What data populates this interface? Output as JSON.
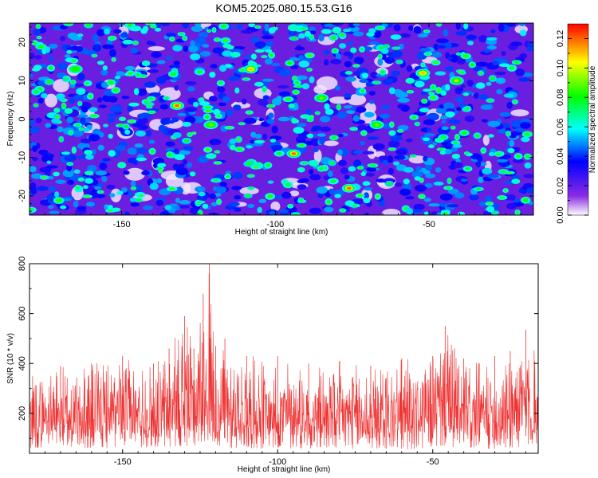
{
  "title": "KOM5.2025.080.15.53.G16",
  "chart_data": [
    {
      "type": "heatmap",
      "xlabel": "Height of straight line (km)",
      "ylabel": "Frequency (Hz)",
      "xlim": [
        -180,
        -16
      ],
      "ylim": [
        -25,
        25
      ],
      "x_ticks": [
        -150,
        -100,
        -50
      ],
      "x_tick_labels": [
        "-150",
        "-100",
        "-50"
      ],
      "y_ticks": [
        20,
        10,
        0,
        -10,
        -20
      ],
      "y_tick_labels": [
        "20",
        "10",
        "0",
        "-10",
        "-20"
      ],
      "colorbar": {
        "label": "Normalized spectral amplitude",
        "range": [
          0.0,
          0.13
        ],
        "ticks": [
          0.0,
          0.02,
          0.04,
          0.06,
          0.08,
          0.1,
          0.12
        ],
        "tick_labels": [
          "0.00",
          "0.02",
          "0.04",
          "0.06",
          "0.08",
          "0.10",
          "0.12"
        ],
        "colors": [
          "#ffffff",
          "#8a2be2",
          "#0000ff",
          "#00ffff",
          "#00ff00",
          "#ffff00",
          "#ff0000"
        ]
      },
      "peaks": [
        {
          "x": -132,
          "y": 3.5,
          "value": 0.12
        },
        {
          "x": -108,
          "y": 13,
          "value": 0.11
        },
        {
          "x": -94,
          "y": -9,
          "value": 0.12
        },
        {
          "x": -76,
          "y": -18,
          "value": 0.12
        },
        {
          "x": -52,
          "y": 12,
          "value": 0.11
        },
        {
          "x": -41,
          "y": 10,
          "value": 0.1
        },
        {
          "x": -121,
          "y": -1.5,
          "value": 0.09
        },
        {
          "x": -67,
          "y": -1.5,
          "value": 0.09
        },
        {
          "x": -85,
          "y": 5.5,
          "value": 0.09
        },
        {
          "x": -165,
          "y": 13,
          "value": 0.08
        }
      ],
      "grid": false
    },
    {
      "type": "line",
      "xlabel": "Height of straight line (km)",
      "ylabel": "SNR (10 * v/v)",
      "xlim": [
        -180,
        -16
      ],
      "ylim": [
        40,
        800
      ],
      "x_ticks": [
        -150,
        -100,
        -50
      ],
      "x_tick_labels": [
        "-150",
        "-100",
        "-50"
      ],
      "y_ticks": [
        200,
        400,
        600,
        800
      ],
      "y_tick_labels": [
        "200",
        "400",
        "600",
        "800"
      ],
      "color": "#ee3333",
      "envelope": {
        "x": [
          -180,
          -170,
          -160,
          -150,
          -140,
          -135,
          -130,
          -127,
          -124,
          -122,
          -120,
          -117,
          -110,
          -100,
          -90,
          -80,
          -70,
          -60,
          -50,
          -46,
          -43,
          -40,
          -35,
          -30,
          -25,
          -20,
          -16
        ],
        "max": [
          410,
          390,
          400,
          430,
          400,
          460,
          590,
          460,
          680,
          800,
          470,
          500,
          430,
          430,
          400,
          410,
          390,
          420,
          430,
          550,
          460,
          420,
          400,
          430,
          450,
          535,
          420
        ],
        "min": [
          60,
          65,
          60,
          60,
          65,
          60,
          70,
          65,
          90,
          80,
          60,
          60,
          60,
          55,
          60,
          55,
          60,
          55,
          60,
          70,
          60,
          55,
          60,
          55,
          60,
          70,
          60
        ]
      },
      "grid": false
    }
  ]
}
